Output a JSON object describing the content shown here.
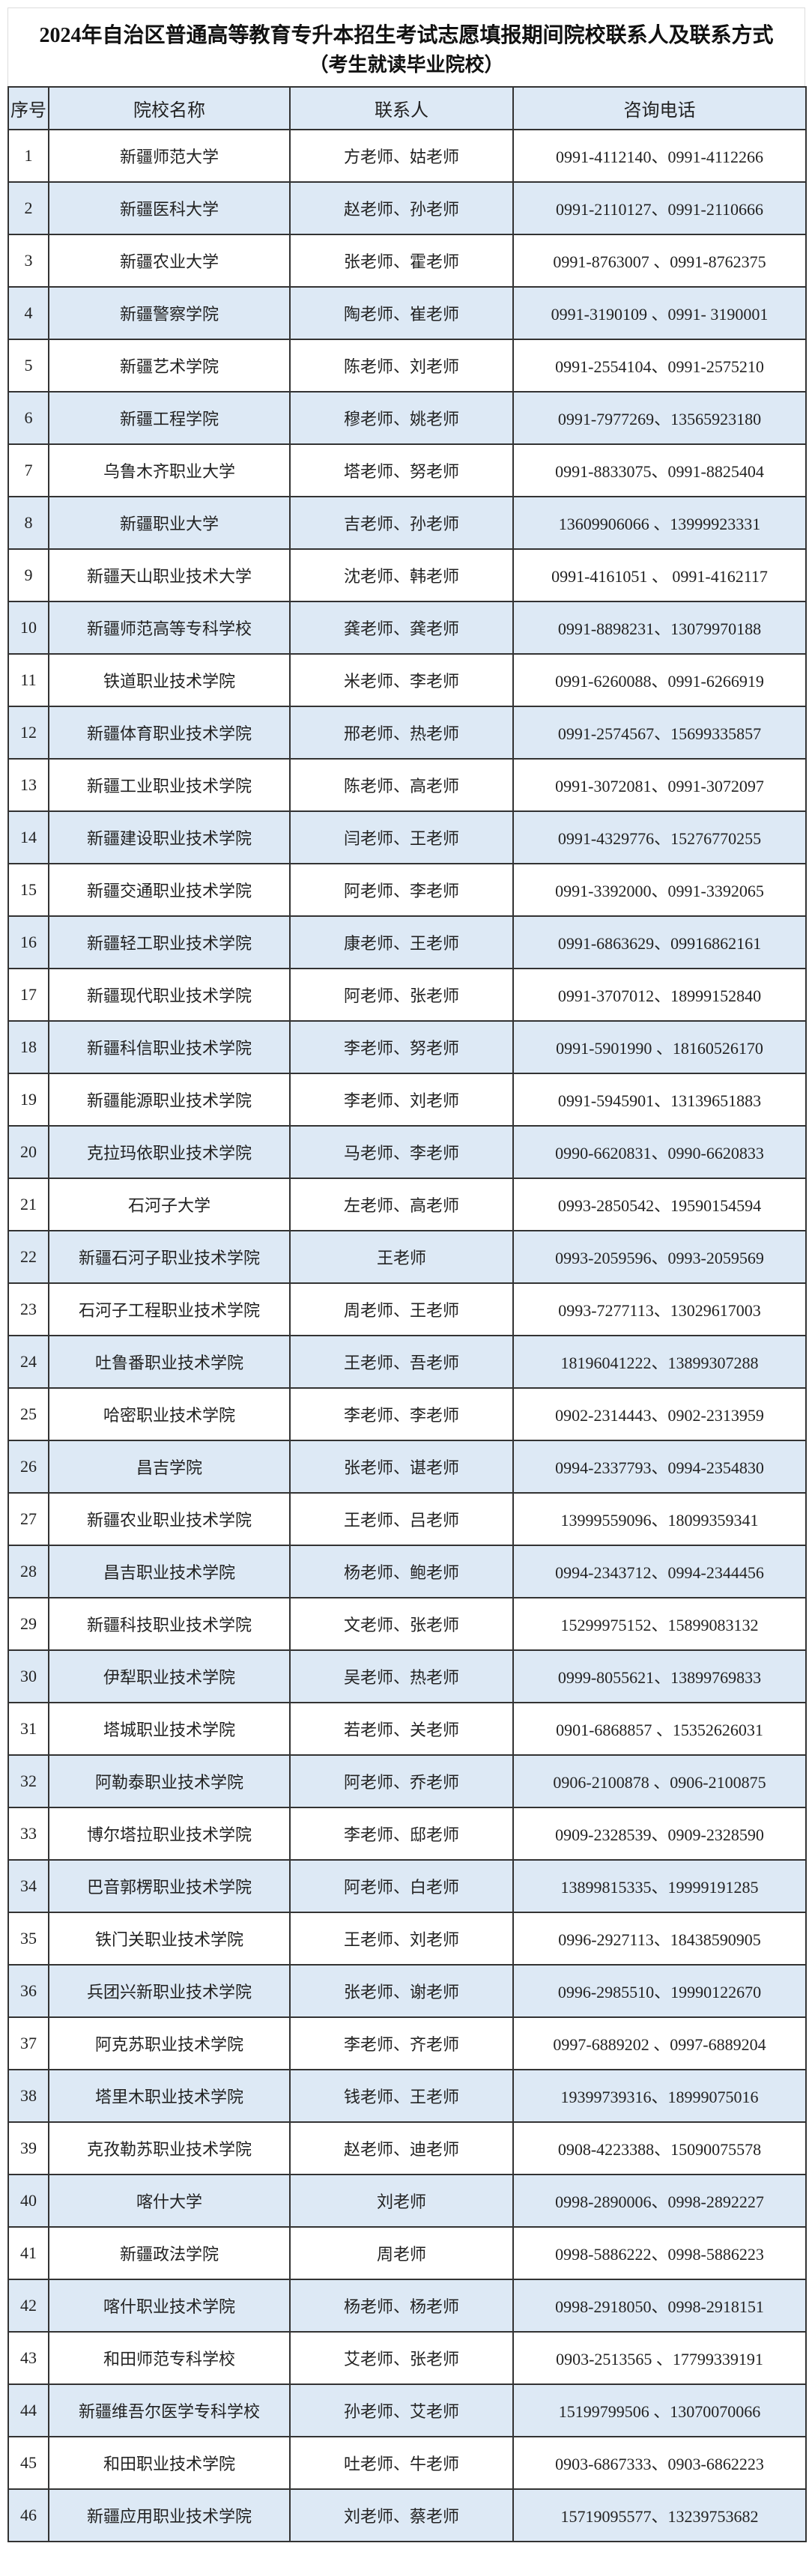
{
  "title": "2024年自治区普通高等教育专升本招生考试志愿填报期间院校联系人及联系方式",
  "subtitle": "（考生就读毕业院校）",
  "colors": {
    "header_bg": "#dde9f5",
    "alt_row_bg": "#dde9f5",
    "border": "#333333"
  },
  "table": {
    "headers": [
      "序号",
      "院校名称",
      "联系人",
      "咨询电话"
    ],
    "rows": [
      [
        "1",
        "新疆师范大学",
        "方老师、姑老师",
        "0991-4112140、0991-4112266"
      ],
      [
        "2",
        "新疆医科大学",
        "赵老师、孙老师",
        "0991-2110127、0991-2110666"
      ],
      [
        "3",
        "新疆农业大学",
        "张老师、霍老师",
        "0991-8763007 、0991-8762375"
      ],
      [
        "4",
        "新疆警察学院",
        "陶老师、崔老师",
        "0991-3190109 、0991- 3190001"
      ],
      [
        "5",
        "新疆艺术学院",
        "陈老师、刘老师",
        "0991-2554104、0991-2575210"
      ],
      [
        "6",
        "新疆工程学院",
        "穆老师、姚老师",
        "0991-7977269、13565923180"
      ],
      [
        "7",
        "乌鲁木齐职业大学",
        "塔老师、努老师",
        "0991-8833075、0991-8825404"
      ],
      [
        "8",
        "新疆职业大学",
        "吉老师、孙老师",
        "13609906066 、13999923331"
      ],
      [
        "9",
        "新疆天山职业技术大学",
        "沈老师、韩老师",
        "0991-4161051 、 0991-4162117"
      ],
      [
        "10",
        "新疆师范高等专科学校",
        "龚老师、龚老师",
        "0991-8898231、13079970188"
      ],
      [
        "11",
        "铁道职业技术学院",
        "米老师、李老师",
        "0991-6260088、0991-6266919"
      ],
      [
        "12",
        "新疆体育职业技术学院",
        "邢老师、热老师",
        "0991-2574567、15699335857"
      ],
      [
        "13",
        "新疆工业职业技术学院",
        "陈老师、高老师",
        "0991-3072081、0991-3072097"
      ],
      [
        "14",
        "新疆建设职业技术学院",
        "闫老师、王老师",
        "0991-4329776、15276770255"
      ],
      [
        "15",
        "新疆交通职业技术学院",
        "阿老师、李老师",
        "0991-3392000、0991-3392065"
      ],
      [
        "16",
        "新疆轻工职业技术学院",
        "康老师、王老师",
        "0991-6863629、09916862161"
      ],
      [
        "17",
        "新疆现代职业技术学院",
        "阿老师、张老师",
        "0991-3707012、18999152840"
      ],
      [
        "18",
        "新疆科信职业技术学院",
        "李老师、努老师",
        "0991-5901990 、18160526170"
      ],
      [
        "19",
        "新疆能源职业技术学院",
        "李老师、刘老师",
        "0991-5945901、13139651883"
      ],
      [
        "20",
        "克拉玛依职业技术学院",
        "马老师、李老师",
        "0990-6620831、0990-6620833"
      ],
      [
        "21",
        "石河子大学",
        "左老师、高老师",
        "0993-2850542、19590154594"
      ],
      [
        "22",
        "新疆石河子职业技术学院",
        "王老师",
        "0993-2059596、0993-2059569"
      ],
      [
        "23",
        "石河子工程职业技术学院",
        "周老师、王老师",
        "0993-7277113、13029617003"
      ],
      [
        "24",
        "吐鲁番职业技术学院",
        "王老师、吾老师",
        "18196041222、13899307288"
      ],
      [
        "25",
        "哈密职业技术学院",
        "李老师、李老师",
        "0902-2314443、0902-2313959"
      ],
      [
        "26",
        "昌吉学院",
        "张老师、谌老师",
        "0994-2337793、0994-2354830"
      ],
      [
        "27",
        "新疆农业职业技术学院",
        "王老师、吕老师",
        "13999559096、18099359341"
      ],
      [
        "28",
        "昌吉职业技术学院",
        "杨老师、鲍老师",
        "0994-2343712、0994-2344456"
      ],
      [
        "29",
        "新疆科技职业技术学院",
        "文老师、张老师",
        "15299975152、15899083132"
      ],
      [
        "30",
        "伊犁职业技术学院",
        "吴老师、热老师",
        "0999-8055621、13899769833"
      ],
      [
        "31",
        "塔城职业技术学院",
        "若老师、关老师",
        "0901-6868857 、15352626031"
      ],
      [
        "32",
        "阿勒泰职业技术学院",
        "阿老师、乔老师",
        "0906-2100878 、0906-2100875"
      ],
      [
        "33",
        "博尔塔拉职业技术学院",
        "李老师、邸老师",
        "0909-2328539、0909-2328590"
      ],
      [
        "34",
        "巴音郭楞职业技术学院",
        "阿老师、白老师",
        "13899815335、19999191285"
      ],
      [
        "35",
        "铁门关职业技术学院",
        "王老师、刘老师",
        "0996-2927113、18438590905"
      ],
      [
        "36",
        "兵团兴新职业技术学院",
        "张老师、谢老师",
        "0996-2985510、19990122670"
      ],
      [
        "37",
        "阿克苏职业技术学院",
        "李老师、齐老师",
        "0997-6889202 、0997-6889204"
      ],
      [
        "38",
        "塔里木职业技术学院",
        "钱老师、王老师",
        "19399739316、18999075016"
      ],
      [
        "39",
        "克孜勒苏职业技术学院",
        "赵老师、迪老师",
        "0908-4223388、15090075578"
      ],
      [
        "40",
        "喀什大学",
        "刘老师",
        "0998-2890006、0998-2892227"
      ],
      [
        "41",
        "新疆政法学院",
        "周老师",
        "0998-5886222、0998-5886223"
      ],
      [
        "42",
        "喀什职业技术学院",
        "杨老师、杨老师",
        "0998-2918050、0998-2918151"
      ],
      [
        "43",
        "和田师范专科学校",
        "艾老师、张老师",
        "0903-2513565 、17799339191"
      ],
      [
        "44",
        "新疆维吾尔医学专科学校",
        "孙老师、艾老师",
        "15199799506 、13070070066"
      ],
      [
        "45",
        "和田职业技术学院",
        "吐老师、牛老师",
        "0903-6867333、0903-6862223"
      ],
      [
        "46",
        "新疆应用职业技术学院",
        "刘老师、蔡老师",
        "15719095577、13239753682"
      ]
    ]
  }
}
